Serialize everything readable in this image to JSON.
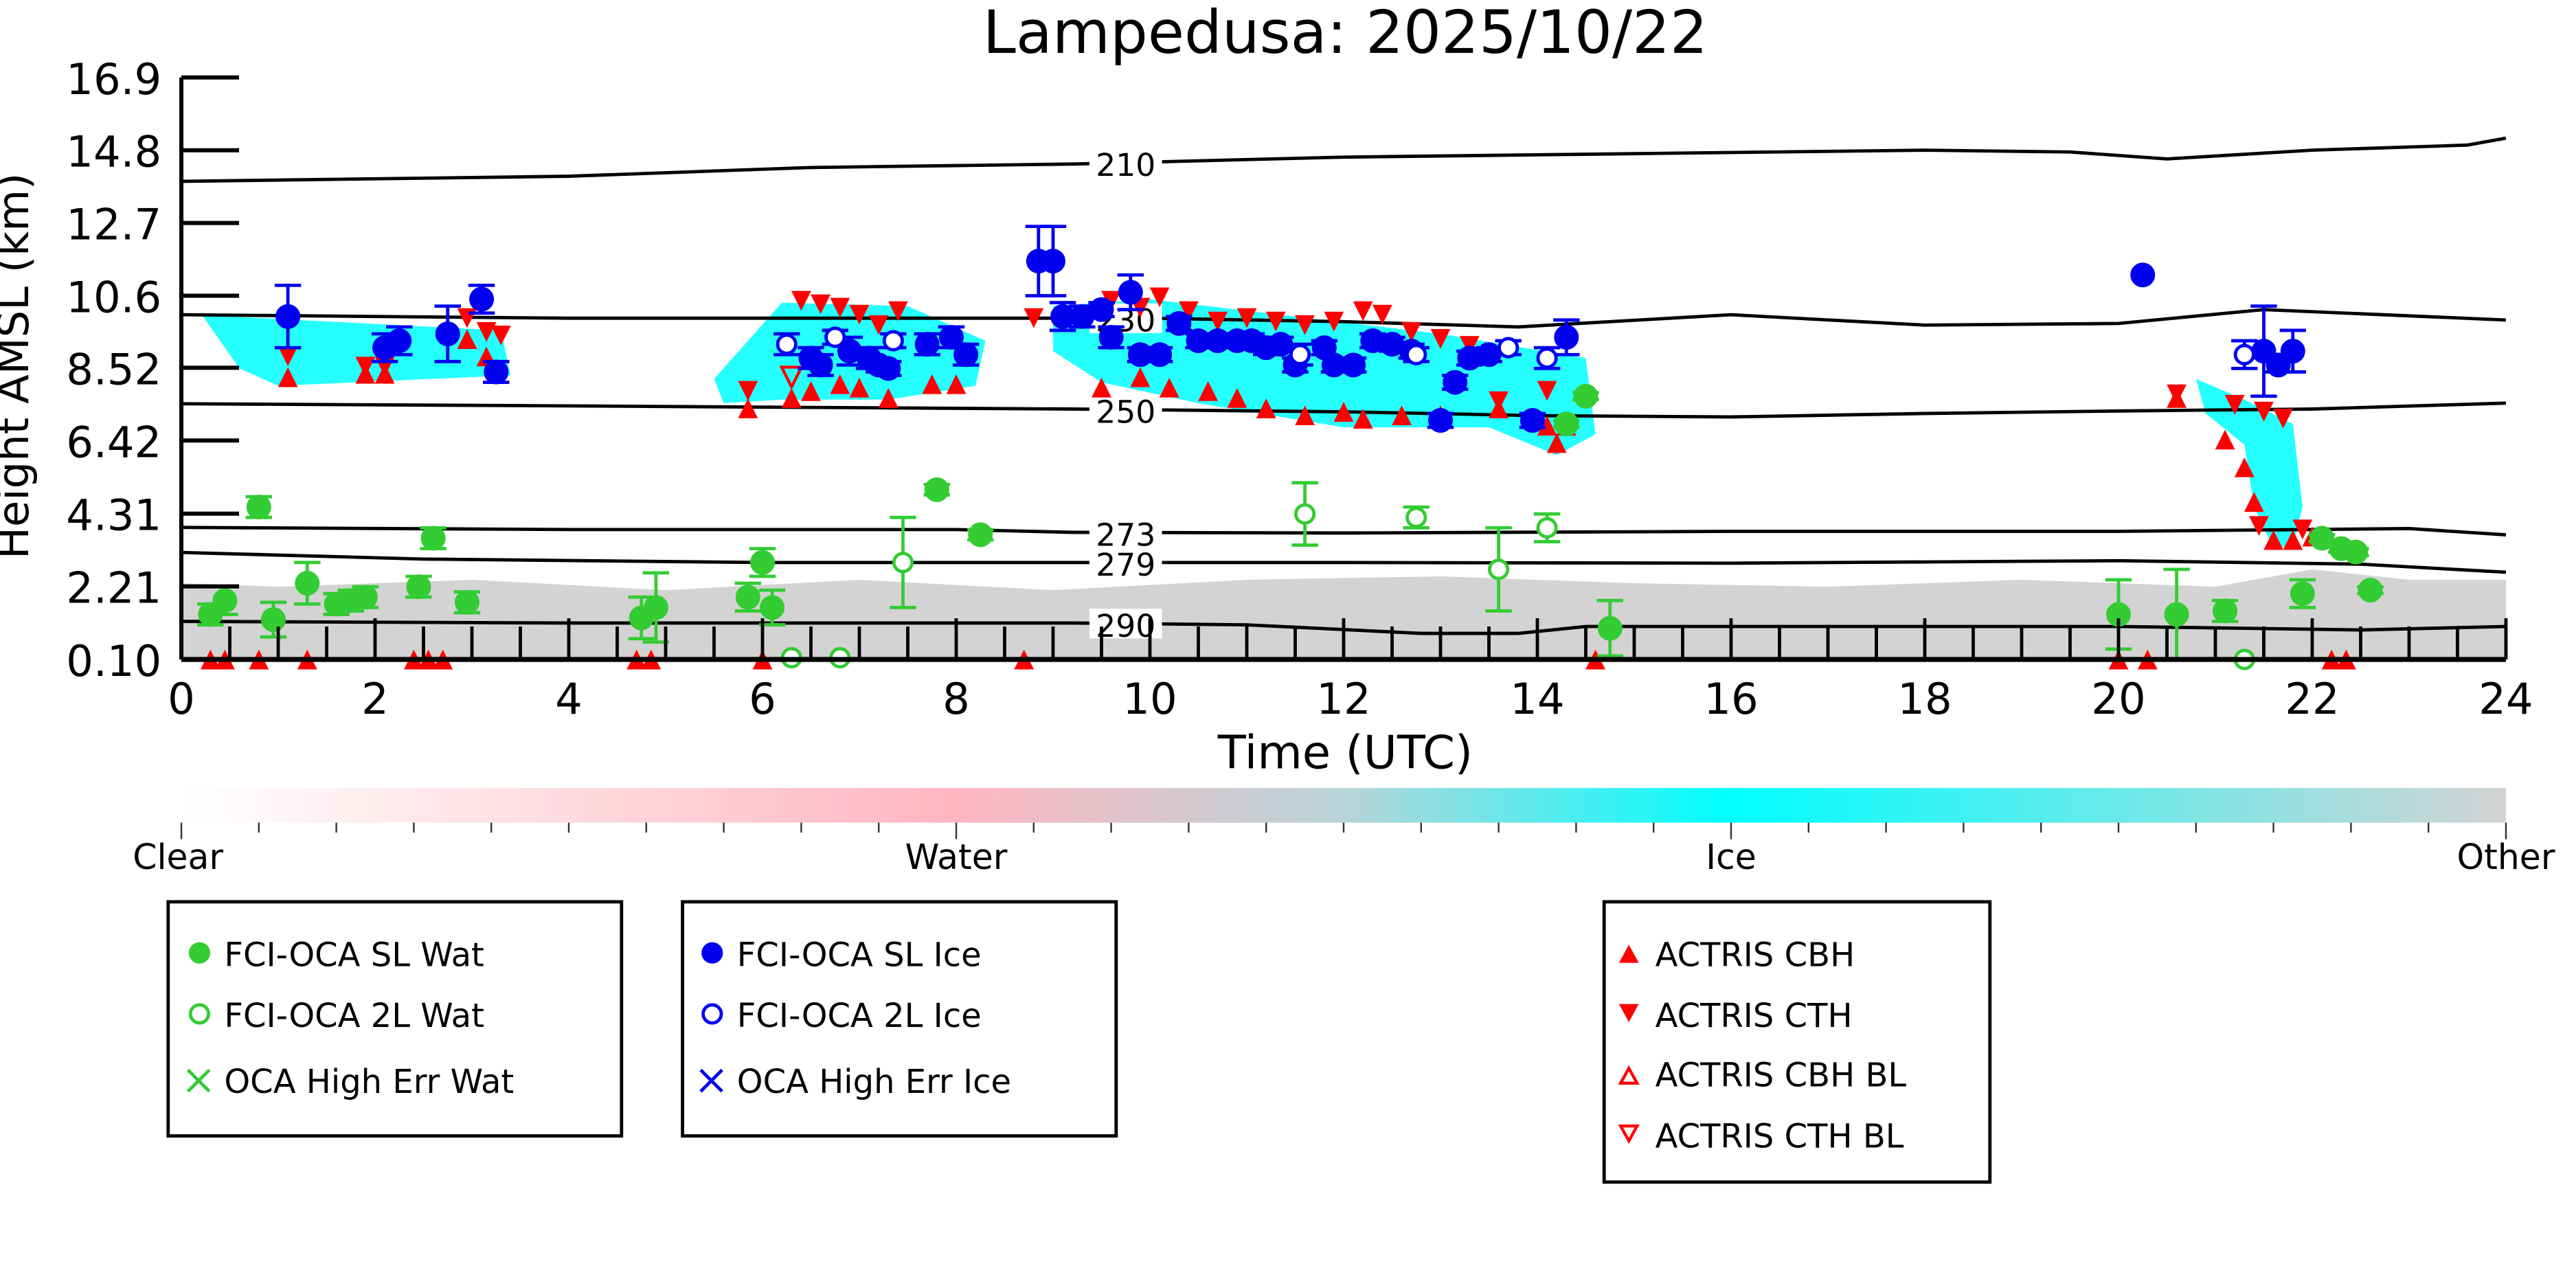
{
  "chart_data": {
    "type": "scatter",
    "title": "Lampedusa: 2025/10/22",
    "xlabel": "Time (UTC)",
    "ylabel": "Height AMSL (km)",
    "xlim": [
      0,
      24
    ],
    "ylim": [
      0.1,
      16.9
    ],
    "xticks": [
      "0",
      "2",
      "4",
      "6",
      "8",
      "10",
      "12",
      "14",
      "16",
      "18",
      "20",
      "22",
      "24"
    ],
    "yticks": [
      "16.9",
      "14.8",
      "12.7",
      "10.6",
      "8.52",
      "6.42",
      "4.31",
      "2.21",
      "0.10"
    ],
    "ytick_values": [
      16.9,
      14.8,
      12.7,
      10.6,
      8.52,
      6.42,
      4.31,
      2.21,
      0.1
    ],
    "contours": [
      {
        "label": "210",
        "points": [
          [
            0,
            13.9
          ],
          [
            4,
            14.05
          ],
          [
            6.5,
            14.3
          ],
          [
            9.2,
            14.4
          ],
          [
            12,
            14.6
          ],
          [
            15,
            14.7
          ],
          [
            18,
            14.8
          ],
          [
            19.5,
            14.75
          ],
          [
            20.5,
            14.55
          ],
          [
            22,
            14.8
          ],
          [
            23.6,
            14.95
          ],
          [
            24,
            15.15
          ]
        ]
      },
      {
        "label": "230",
        "points": [
          [
            0,
            10.05
          ],
          [
            4,
            9.95
          ],
          [
            8,
            9.95
          ],
          [
            10,
            9.95
          ],
          [
            12,
            9.85
          ],
          [
            13.8,
            9.7
          ],
          [
            16,
            10.05
          ],
          [
            18,
            9.75
          ],
          [
            20,
            9.8
          ],
          [
            21.5,
            10.2
          ],
          [
            24,
            9.9
          ]
        ]
      },
      {
        "label": "250",
        "points": [
          [
            0,
            7.48
          ],
          [
            4,
            7.42
          ],
          [
            9.2,
            7.33
          ],
          [
            12,
            7.25
          ],
          [
            14,
            7.14
          ],
          [
            16,
            7.1
          ],
          [
            18,
            7.2
          ],
          [
            20,
            7.27
          ],
          [
            22,
            7.33
          ],
          [
            24,
            7.5
          ]
        ]
      },
      {
        "label": "273",
        "points": [
          [
            0,
            3.91
          ],
          [
            4,
            3.85
          ],
          [
            8,
            3.85
          ],
          [
            9.2,
            3.77
          ],
          [
            12,
            3.75
          ],
          [
            16,
            3.8
          ],
          [
            20,
            3.8
          ],
          [
            23,
            3.88
          ],
          [
            24,
            3.7
          ]
        ]
      },
      {
        "label": "279",
        "points": [
          [
            0,
            3.19
          ],
          [
            2.5,
            3.0
          ],
          [
            6,
            2.9
          ],
          [
            9.2,
            2.9
          ],
          [
            12,
            2.9
          ],
          [
            16,
            2.88
          ],
          [
            20,
            2.95
          ],
          [
            22.5,
            2.85
          ],
          [
            24,
            2.62
          ]
        ]
      },
      {
        "label": "290",
        "points": [
          [
            0,
            1.2
          ],
          [
            4,
            1.15
          ],
          [
            9.2,
            1.15
          ],
          [
            11,
            1.1
          ],
          [
            12.8,
            0.85
          ],
          [
            13.8,
            0.85
          ],
          [
            14.5,
            1.05
          ],
          [
            16,
            1.05
          ],
          [
            20,
            1.05
          ],
          [
            22.5,
            0.95
          ],
          [
            24,
            1.05
          ]
        ]
      }
    ],
    "series": [
      {
        "name": "FCI-OCA SL Wat",
        "points": [
          [
            0.3,
            1.4,
            0.3
          ],
          [
            0.45,
            1.8,
            0.4
          ],
          [
            0.8,
            4.5,
            0.3
          ],
          [
            0.95,
            1.25,
            0.5
          ],
          [
            1.3,
            2.3,
            0.6
          ],
          [
            1.6,
            1.7,
            0.3
          ],
          [
            1.75,
            1.8,
            0.3
          ],
          [
            1.9,
            1.9,
            0.3
          ],
          [
            2.45,
            2.2,
            0.3
          ],
          [
            2.6,
            3.6,
            0.3
          ],
          [
            2.95,
            1.75,
            0.3
          ],
          [
            4.75,
            1.3,
            0.6
          ],
          [
            4.9,
            1.6,
            1.0
          ],
          [
            5.85,
            1.9,
            0.4
          ],
          [
            6.0,
            2.9,
            0.4
          ],
          [
            6.1,
            1.6,
            0.5
          ],
          [
            7.8,
            5.0,
            0.15
          ],
          [
            8.25,
            3.7,
            0.15
          ],
          [
            14.3,
            6.9,
            0.1
          ],
          [
            14.5,
            7.7,
            0.1
          ],
          [
            14.75,
            1.0,
            0.8
          ],
          [
            20.0,
            1.4,
            1.0
          ],
          [
            20.6,
            1.4,
            1.3
          ],
          [
            21.1,
            1.5,
            0.3
          ],
          [
            21.9,
            2.0,
            0.4
          ],
          [
            22.1,
            3.6,
            0.1
          ],
          [
            22.3,
            3.3,
            0.1
          ],
          [
            22.45,
            3.2,
            0.1
          ],
          [
            22.6,
            2.1,
            0.1
          ]
        ]
      },
      {
        "name": "FCI-OCA 2L Wat",
        "points": [
          [
            6.3,
            0.15,
            0
          ],
          [
            6.8,
            0.15,
            0
          ],
          [
            7.45,
            2.9,
            1.3
          ],
          [
            11.6,
            4.3,
            0.9
          ],
          [
            12.75,
            4.2,
            0.3
          ],
          [
            13.6,
            2.7,
            1.2
          ],
          [
            14.1,
            3.9,
            0.4
          ],
          [
            21.3,
            0.1,
            0
          ]
        ]
      },
      {
        "name": "OCA High Err Wat",
        "points": []
      },
      {
        "name": "FCI-OCA SL Ice",
        "points": [
          [
            1.1,
            10.0,
            0.9
          ],
          [
            2.1,
            9.1,
            0.4
          ],
          [
            2.25,
            9.3,
            0.4
          ],
          [
            2.75,
            9.5,
            0.8
          ],
          [
            3.1,
            10.5,
            0.4
          ],
          [
            3.25,
            8.4,
            0.3
          ],
          [
            6.5,
            8.8,
            0.3
          ],
          [
            6.6,
            8.6,
            0.3
          ],
          [
            6.9,
            9.0,
            0.4
          ],
          [
            7.1,
            8.8,
            0.3
          ],
          [
            7.2,
            8.6,
            0.2
          ],
          [
            7.3,
            8.5,
            0.2
          ],
          [
            7.7,
            9.2,
            0.3
          ],
          [
            7.95,
            9.4,
            0.3
          ],
          [
            8.1,
            8.9,
            0.3
          ],
          [
            8.85,
            11.6,
            1.0
          ],
          [
            9.0,
            11.6,
            1.0
          ],
          [
            9.1,
            10.0,
            0.4
          ],
          [
            9.3,
            10.0,
            0.3
          ],
          [
            9.5,
            10.2,
            0.2
          ],
          [
            9.6,
            9.4,
            0.3
          ],
          [
            9.8,
            10.7,
            0.5
          ],
          [
            9.9,
            8.9,
            0.2
          ],
          [
            10.1,
            8.9,
            0.2
          ],
          [
            10.3,
            9.8,
            0.2
          ],
          [
            10.5,
            9.3,
            0.2
          ],
          [
            10.7,
            9.3,
            0.2
          ],
          [
            10.9,
            9.3,
            0.2
          ],
          [
            11.05,
            9.3,
            0.2
          ],
          [
            11.2,
            9.1,
            0.2
          ],
          [
            11.35,
            9.2,
            0.2
          ],
          [
            11.5,
            8.6,
            0.2
          ],
          [
            11.8,
            9.1,
            0.2
          ],
          [
            11.9,
            8.6,
            0.2
          ],
          [
            12.1,
            8.6,
            0.2
          ],
          [
            12.3,
            9.3,
            0.2
          ],
          [
            12.5,
            9.2,
            0.2
          ],
          [
            12.7,
            9.0,
            0.2
          ],
          [
            13.0,
            7.0,
            0.2
          ],
          [
            13.15,
            8.1,
            0.2
          ],
          [
            13.3,
            8.8,
            0.2
          ],
          [
            13.5,
            8.9,
            0.2
          ],
          [
            13.95,
            7.0,
            0.2
          ],
          [
            14.3,
            9.4,
            0.5
          ],
          [
            20.25,
            11.2,
            0
          ],
          [
            21.5,
            9.0,
            1.3
          ],
          [
            21.65,
            8.6,
            0.2
          ],
          [
            21.8,
            9.0,
            0.6
          ]
        ]
      },
      {
        "name": "FCI-OCA 2L Ice",
        "points": [
          [
            6.25,
            9.2,
            0.3
          ],
          [
            6.75,
            9.4,
            0.2
          ],
          [
            7.35,
            9.3,
            0.2
          ],
          [
            11.55,
            8.9,
            0.3
          ],
          [
            12.75,
            8.9,
            0.2
          ],
          [
            13.7,
            9.1,
            0.2
          ],
          [
            14.1,
            8.8,
            0.3
          ],
          [
            21.3,
            8.9,
            0.4
          ]
        ]
      },
      {
        "name": "OCA High Err Ice",
        "points": []
      },
      {
        "name": "ACTRIS CBH",
        "points": [
          [
            1.1,
            8.2
          ],
          [
            1.9,
            8.3
          ],
          [
            2.1,
            8.3
          ],
          [
            2.95,
            9.3
          ],
          [
            3.15,
            8.8
          ],
          [
            5.85,
            7.3
          ],
          [
            6.3,
            7.6
          ],
          [
            6.5,
            7.8
          ],
          [
            6.8,
            8.0
          ],
          [
            7.3,
            7.6
          ],
          [
            7.0,
            7.9
          ],
          [
            7.75,
            8.0
          ],
          [
            8.0,
            8.0
          ],
          [
            9.5,
            7.9
          ],
          [
            9.9,
            8.2
          ],
          [
            10.2,
            7.9
          ],
          [
            10.6,
            7.8
          ],
          [
            10.9,
            7.6
          ],
          [
            11.2,
            7.3
          ],
          [
            11.6,
            7.1
          ],
          [
            12.0,
            7.2
          ],
          [
            12.2,
            7.0
          ],
          [
            12.6,
            7.1
          ],
          [
            13.0,
            7.1
          ],
          [
            13.6,
            7.3
          ],
          [
            14.1,
            6.8
          ],
          [
            14.2,
            6.3
          ],
          [
            14.3,
            6.8
          ],
          [
            20.6,
            7.6
          ],
          [
            21.1,
            6.4
          ],
          [
            21.3,
            5.6
          ],
          [
            21.4,
            4.6
          ],
          [
            21.6,
            3.5
          ],
          [
            21.8,
            3.5
          ],
          [
            22.0,
            3.6
          ],
          [
            0.3,
            0.05
          ],
          [
            0.45,
            0.05
          ],
          [
            0.8,
            0.05
          ],
          [
            1.3,
            0.05
          ],
          [
            2.4,
            0.05
          ],
          [
            2.55,
            0.05
          ],
          [
            2.7,
            0.05
          ],
          [
            4.7,
            0.05
          ],
          [
            4.85,
            0.05
          ],
          [
            6.0,
            0.05
          ],
          [
            8.7,
            0.05
          ],
          [
            14.6,
            0.05
          ],
          [
            20.0,
            0.05
          ],
          [
            20.3,
            0.05
          ],
          [
            22.2,
            0.05
          ],
          [
            22.35,
            0.05
          ]
        ]
      },
      {
        "name": "ACTRIS CTH",
        "points": [
          [
            1.1,
            8.9
          ],
          [
            1.9,
            8.6
          ],
          [
            2.1,
            8.6
          ],
          [
            2.95,
            10.0
          ],
          [
            3.15,
            9.6
          ],
          [
            3.3,
            9.5
          ],
          [
            5.85,
            7.9
          ],
          [
            6.4,
            10.5
          ],
          [
            6.6,
            10.4
          ],
          [
            6.8,
            10.3
          ],
          [
            7.0,
            10.1
          ],
          [
            7.2,
            9.8
          ],
          [
            7.4,
            10.2
          ],
          [
            8.8,
            10.0
          ],
          [
            9.6,
            10.5
          ],
          [
            9.9,
            10.3
          ],
          [
            10.1,
            10.6
          ],
          [
            10.4,
            10.2
          ],
          [
            10.7,
            9.9
          ],
          [
            11.0,
            10.0
          ],
          [
            11.3,
            9.9
          ],
          [
            11.6,
            9.8
          ],
          [
            11.9,
            9.9
          ],
          [
            12.2,
            10.2
          ],
          [
            12.4,
            10.1
          ],
          [
            12.7,
            9.6
          ],
          [
            13.0,
            9.4
          ],
          [
            13.3,
            9.2
          ],
          [
            13.6,
            7.6
          ],
          [
            14.1,
            7.9
          ],
          [
            20.6,
            7.8
          ],
          [
            21.2,
            7.5
          ],
          [
            21.5,
            7.3
          ],
          [
            21.7,
            7.1
          ],
          [
            21.45,
            4.0
          ],
          [
            21.9,
            3.9
          ]
        ]
      },
      {
        "name": "ACTRIS CBH BL",
        "points": []
      },
      {
        "name": "ACTRIS CTH BL",
        "points": [
          [
            6.3,
            8.3
          ]
        ]
      }
    ],
    "colorbar": {
      "labels": [
        "Clear",
        "Water",
        "Ice",
        "Other"
      ]
    }
  },
  "legends": [
    {
      "items": [
        {
          "label": "FCI-OCA SL Wat"
        },
        {
          "label": "FCI-OCA 2L Wat"
        },
        {
          "label": "OCA High Err Wat"
        }
      ]
    },
    {
      "items": [
        {
          "label": "FCI-OCA SL Ice"
        },
        {
          "label": "FCI-OCA 2L Ice"
        },
        {
          "label": "OCA High Err Ice"
        }
      ]
    },
    {
      "items": [
        {
          "label": "ACTRIS CBH"
        },
        {
          "label": "ACTRIS CTH"
        },
        {
          "label": "ACTRIS CBH BL"
        },
        {
          "label": "ACTRIS CTH BL"
        }
      ]
    }
  ],
  "colors": {
    "water": "#33cc33",
    "ice": "#0000ee",
    "actris": "#ff0000",
    "cyan": "#00ffff",
    "other": "#d3d3d3",
    "pink": "#ffb6c1"
  }
}
